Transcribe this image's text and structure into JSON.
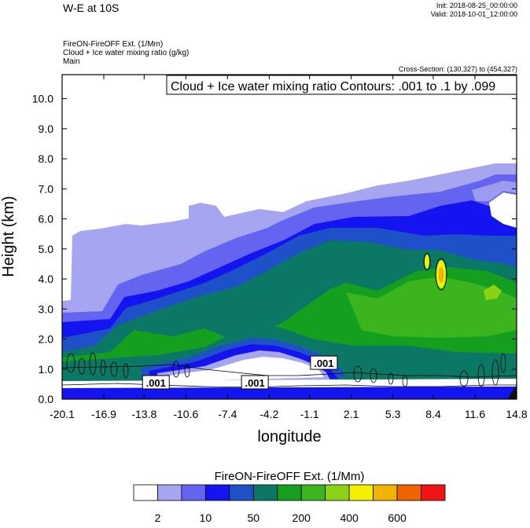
{
  "header": {
    "main_title": "W-E at 10S",
    "init_line": "Init: 2018-08-25_00:00:00",
    "valid_line": "Valid: 2018-10-01_12:00:00",
    "subtitle_1": "FireON-FireOFF Ext.   (1/Mm)",
    "subtitle_2": "Cloud + Ice water mixing ratio   (g/kg)",
    "subtitle_3": "Main",
    "cross_section": "Cross-Section: (130,327) to (454,327)"
  },
  "chart_data": {
    "type": "heatmap",
    "title": "W-E at 10S",
    "xlabel": "longitude",
    "ylabel": "Height (km)",
    "xlim": [
      -20.1,
      14.8
    ],
    "ylim": [
      0.0,
      10.8
    ],
    "x_ticks": [
      "-20.1",
      "-16.9",
      "-13.8",
      "-10.6",
      "-7.4",
      "-4.2",
      "-1.1",
      "2.1",
      "5.3",
      "8.4",
      "11.6",
      "14.8"
    ],
    "y_ticks": [
      "0.0",
      "1.0",
      "2.0",
      "3.0",
      "4.0",
      "5.0",
      "6.0",
      "7.0",
      "8.0",
      "9.0",
      "10.0"
    ],
    "contour_info": "Cloud + Ice water mixing ratio Contours: .001 to .1 by .099",
    "contour_labels": [
      {
        "text": ".001",
        "x": -12.9,
        "y": 0.55
      },
      {
        "text": ".001",
        "x": -5.3,
        "y": 0.55
      },
      {
        "text": ".001",
        "x": 0.0,
        "y": 1.2
      }
    ],
    "colorbar": {
      "title": "FireON-FireOFF Ext.  (1/Mm)",
      "colors": [
        "#ffffff",
        "#a5a5f0",
        "#6464f0",
        "#1414f0",
        "#1e50c8",
        "#0a7864",
        "#14a01e",
        "#3cb41e",
        "#8cd214",
        "#f0f000",
        "#f0b400",
        "#f06400",
        "#f01414"
      ],
      "tick_labels": [
        "2",
        "10",
        "50",
        "200",
        "400",
        "600"
      ]
    }
  }
}
